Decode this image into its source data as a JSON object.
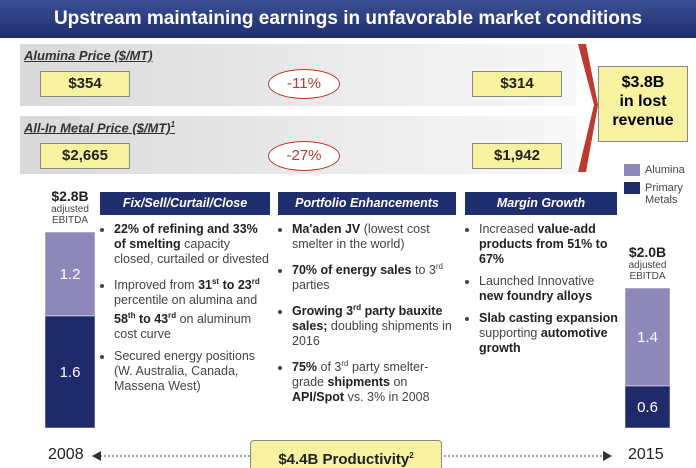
{
  "header": {
    "title": "Upstream maintaining earnings in unfavorable market conditions"
  },
  "prices": [
    {
      "label": "Alumina Price ($/MT)",
      "from": "$354",
      "change": "-11%",
      "to": "$314"
    },
    {
      "label": "All-In Metal Price ($/MT)",
      "sup": "1",
      "from": "$2,665",
      "change": "-27%",
      "to": "$1,942"
    }
  ],
  "lost_revenue": [
    "$3.8B",
    "in lost",
    "revenue"
  ],
  "legend": [
    {
      "label": "Alumina",
      "color": "#8e88b8"
    },
    {
      "label": "Primary Metals",
      "color": "#1f2a6b"
    }
  ],
  "bars": [
    {
      "total": "$2.8B",
      "sub": [
        "adjusted",
        "EBITDA"
      ],
      "values": [
        1.2,
        1.6
      ]
    },
    {
      "total": "$2.0B",
      "sub": [
        "adjusted",
        "EBITDA"
      ],
      "values": [
        1.4,
        0.6
      ]
    }
  ],
  "columns": [
    {
      "title": "Fix/Sell/Curtail/Close",
      "bullets": [
        [
          {
            "t": "22% of refining and 33% of smelting",
            "b": true
          },
          {
            "t": " capacity closed, curtailed or divested"
          }
        ],
        [
          {
            "t": "Improved from "
          },
          {
            "t": "31",
            "b": true
          },
          {
            "t": "st",
            "b": true,
            "sup": true
          },
          {
            "t": " to 23",
            "b": true
          },
          {
            "t": "rd",
            "b": true,
            "sup": true
          },
          {
            "t": " percentile on alumina and "
          },
          {
            "t": "58",
            "b": true
          },
          {
            "t": "th",
            "b": true,
            "sup": true
          },
          {
            "t": " to 43",
            "b": true
          },
          {
            "t": "rd",
            "b": true,
            "sup": true
          },
          {
            "t": " on aluminum cost curve"
          }
        ],
        [
          {
            "t": "Secured energy positions (W. Australia, Canada, Massena West)"
          }
        ]
      ]
    },
    {
      "title": "Portfolio Enhancements",
      "bullets": [
        [
          {
            "t": "Ma'aden JV",
            "b": true
          },
          {
            "t": " (lowest cost smelter in the world)"
          }
        ],
        [
          {
            "t": "70% of energy sales",
            "b": true
          },
          {
            "t": " to 3"
          },
          {
            "t": "rd",
            "sup": true
          },
          {
            "t": " parties"
          }
        ],
        [
          {
            "t": "Growing 3",
            "b": true
          },
          {
            "t": "rd",
            "b": true,
            "sup": true
          },
          {
            "t": " party bauxite sales;",
            "b": true
          },
          {
            "t": " doubling shipments in 2016"
          }
        ],
        [
          {
            "t": "75%",
            "b": true
          },
          {
            "t": " of 3"
          },
          {
            "t": "rd",
            "sup": true
          },
          {
            "t": " party smelter-grade "
          },
          {
            "t": "shipments",
            "b": true
          },
          {
            "t": " on "
          },
          {
            "t": "API/Spot",
            "b": true
          },
          {
            "t": " vs. 3% in 2008"
          }
        ]
      ]
    },
    {
      "title": "Margin Growth",
      "bullets": [
        [
          {
            "t": "Increased "
          },
          {
            "t": "value-add products from 51% to 67%",
            "b": true
          }
        ],
        [
          {
            "t": "Launched Innovative "
          },
          {
            "t": "new foundry alloys",
            "b": true
          }
        ],
        [
          {
            "t": "Slab casting expansion",
            "b": true
          },
          {
            "t": " supporting "
          },
          {
            "t": "automotive growth",
            "b": true
          }
        ]
      ]
    }
  ],
  "timeline": {
    "start": "2008",
    "end": "2015",
    "label": "$4.4B Productivity",
    "sup": "2"
  }
}
